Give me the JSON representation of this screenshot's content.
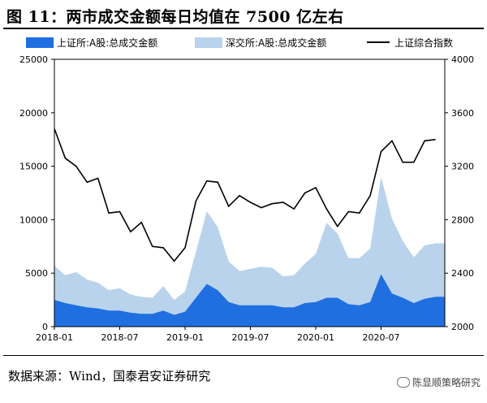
{
  "figure": {
    "title": "图 11：两市成交金额每日均值在 7500 亿左右",
    "source": "数据来源：Wind，国泰君安证券研究",
    "watermark": "陈显顺策略研究"
  },
  "chart_data": {
    "type": "area",
    "legend": [
      "上证所:A股:总成交金额",
      "深交所:A股:总成交金额",
      "上证综合指数"
    ],
    "colors": {
      "sh_turnover": "#1f6fe0",
      "sz_turnover": "#b9d3ec",
      "index": "#000000"
    },
    "x_tick_labels": [
      "2018-01",
      "2018-07",
      "2019-01",
      "2019-07",
      "2020-01",
      "2020-07"
    ],
    "x_range": [
      "2018-01",
      "2020-12"
    ],
    "ylim_left": [
      0,
      25000
    ],
    "left_ticks": [
      0,
      5000,
      10000,
      15000,
      20000,
      25000
    ],
    "ylim_right": [
      2000,
      4000
    ],
    "right_ticks": [
      2000,
      2400,
      2800,
      3200,
      3600,
      4000
    ],
    "grid": false,
    "legend_position": "top",
    "series": [
      {
        "name": "上证所:A股:总成交金额",
        "stacked": true,
        "axis": "left",
        "x": [
          "2018-01",
          "2018-02",
          "2018-03",
          "2018-04",
          "2018-05",
          "2018-06",
          "2018-07",
          "2018-08",
          "2018-09",
          "2018-10",
          "2018-11",
          "2018-12",
          "2019-01",
          "2019-02",
          "2019-03",
          "2019-04",
          "2019-05",
          "2019-06",
          "2019-07",
          "2019-08",
          "2019-09",
          "2019-10",
          "2019-11",
          "2019-12",
          "2020-01",
          "2020-02",
          "2020-03",
          "2020-04",
          "2020-05",
          "2020-06",
          "2020-07",
          "2020-08",
          "2020-09",
          "2020-10",
          "2020-11",
          "2020-12"
        ],
        "values": [
          2500,
          2200,
          2000,
          1800,
          1700,
          1500,
          1500,
          1300,
          1200,
          1200,
          1500,
          1100,
          1400,
          2700,
          4000,
          3400,
          2300,
          2000,
          2000,
          2000,
          2000,
          1800,
          1800,
          2200,
          2300,
          2700,
          2700,
          2100,
          2000,
          2300,
          4900,
          3100,
          2700,
          2200,
          2600,
          2800
        ]
      },
      {
        "name": "深交所:A股:总成交金额",
        "stacked": true,
        "axis": "left",
        "x": [
          "2018-01",
          "2018-02",
          "2018-03",
          "2018-04",
          "2018-05",
          "2018-06",
          "2018-07",
          "2018-08",
          "2018-09",
          "2018-10",
          "2018-11",
          "2018-12",
          "2019-01",
          "2019-02",
          "2019-03",
          "2019-04",
          "2019-05",
          "2019-06",
          "2019-07",
          "2019-08",
          "2019-09",
          "2019-10",
          "2019-11",
          "2019-12",
          "2020-01",
          "2020-02",
          "2020-03",
          "2020-04",
          "2020-05",
          "2020-06",
          "2020-07",
          "2020-08",
          "2020-09",
          "2020-10",
          "2020-11",
          "2020-12"
        ],
        "values": [
          3200,
          2600,
          3100,
          2600,
          2400,
          1900,
          2100,
          1700,
          1600,
          1500,
          2300,
          1400,
          1900,
          4300,
          6800,
          5900,
          3800,
          3200,
          3400,
          3600,
          3500,
          2900,
          3000,
          3700,
          4500,
          7000,
          6000,
          4300,
          4400,
          5000,
          9100,
          7000,
          5300,
          4300,
          5000,
          5000
        ]
      },
      {
        "name": "上证综合指数",
        "axis": "right",
        "type": "line",
        "x": [
          "2018-01",
          "2018-02",
          "2018-03",
          "2018-04",
          "2018-05",
          "2018-06",
          "2018-07",
          "2018-08",
          "2018-09",
          "2018-10",
          "2018-11",
          "2018-12",
          "2019-01",
          "2019-02",
          "2019-03",
          "2019-04",
          "2019-05",
          "2019-06",
          "2019-07",
          "2019-08",
          "2019-09",
          "2019-10",
          "2019-11",
          "2019-12",
          "2020-01",
          "2020-02",
          "2020-03",
          "2020-04",
          "2020-05",
          "2020-06",
          "2020-07",
          "2020-08",
          "2020-09",
          "2020-10",
          "2020-11",
          "2020-12"
        ],
        "values": [
          3480,
          3260,
          3200,
          3080,
          3110,
          2850,
          2860,
          2710,
          2780,
          2600,
          2590,
          2490,
          2590,
          2940,
          3090,
          3080,
          2900,
          2980,
          2930,
          2890,
          2920,
          2930,
          2880,
          3000,
          3040,
          2880,
          2750,
          2860,
          2850,
          2980,
          3310,
          3390,
          3230,
          3230,
          3390,
          3400
        ]
      }
    ]
  }
}
